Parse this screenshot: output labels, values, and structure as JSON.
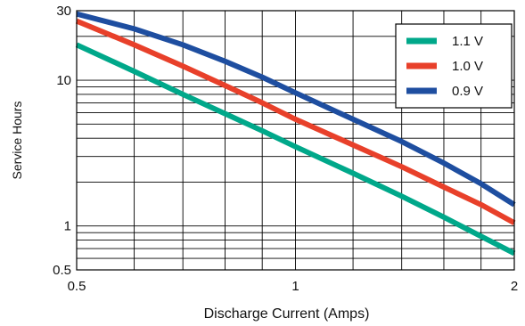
{
  "chart_data": {
    "type": "line",
    "title": "",
    "xlabel": "Discharge Current (Amps)",
    "ylabel": "Service Hours",
    "x_scale": "log",
    "y_scale": "log",
    "xlim": [
      0.5,
      2.0
    ],
    "ylim": [
      0.5,
      30
    ],
    "x_ticks": [
      {
        "value": 0.5,
        "label": "0.5"
      },
      {
        "value": 1,
        "label": "1"
      },
      {
        "value": 2,
        "label": "2"
      }
    ],
    "y_ticks": [
      {
        "value": 0.5,
        "label": "0.5"
      },
      {
        "value": 1,
        "label": "1"
      },
      {
        "value": 10,
        "label": "10"
      },
      {
        "value": 30,
        "label": "30"
      }
    ],
    "grid": true,
    "legend": "top-right",
    "series": [
      {
        "name": "1.1 V",
        "color": "#00a88a",
        "x": [
          0.5,
          0.6,
          0.7,
          0.8,
          0.9,
          1.0,
          1.2,
          1.4,
          1.6,
          1.8,
          2.0
        ],
        "y": [
          17.5,
          11.5,
          8.0,
          5.9,
          4.5,
          3.5,
          2.3,
          1.6,
          1.15,
          0.85,
          0.65
        ]
      },
      {
        "name": "1.0 V",
        "color": "#e8402a",
        "x": [
          0.5,
          0.6,
          0.7,
          0.8,
          0.9,
          1.0,
          1.2,
          1.4,
          1.6,
          1.8,
          2.0
        ],
        "y": [
          25.5,
          17.5,
          12.5,
          9.2,
          7.0,
          5.4,
          3.6,
          2.55,
          1.85,
          1.4,
          1.05
        ]
      },
      {
        "name": "0.9 V",
        "color": "#1e4ea0",
        "x": [
          0.5,
          0.6,
          0.7,
          0.8,
          0.9,
          1.0,
          1.2,
          1.4,
          1.6,
          1.8,
          2.0
        ],
        "y": [
          28.5,
          22.5,
          17.5,
          13.5,
          10.5,
          8.2,
          5.4,
          3.8,
          2.7,
          1.95,
          1.4
        ]
      }
    ]
  }
}
